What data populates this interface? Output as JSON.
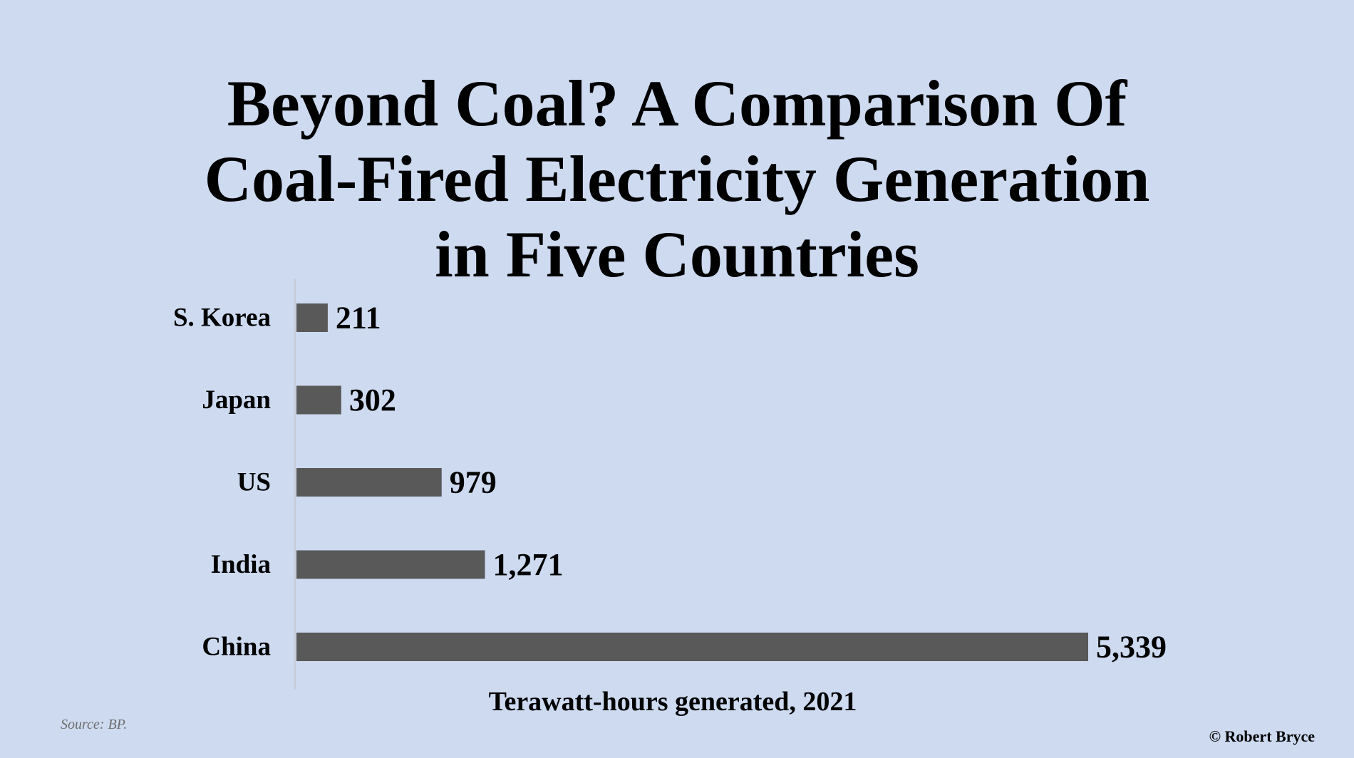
{
  "chart_data": {
    "type": "bar",
    "orientation": "horizontal",
    "title_lines": [
      "Beyond Coal? A Comparison Of",
      "Coal-Fired Electricity Generation",
      "in Five Countries"
    ],
    "categories": [
      "S. Korea",
      "Japan",
      "US",
      "India",
      "China"
    ],
    "values": [
      211,
      302,
      979,
      1271,
      5339
    ],
    "value_labels": [
      "211",
      "302",
      "979",
      "1,271",
      "5,339"
    ],
    "xlabel": "Terawatt-hours generated, 2021",
    "xlim": [
      0,
      5339
    ],
    "bar_color": "#595959",
    "grid": false,
    "legend": "none"
  },
  "source": "Source: BP.",
  "credit": "© Robert Bryce",
  "colors": {
    "background": "#cddaf0",
    "bar": "#595959",
    "axis": "#bfbfbf"
  }
}
